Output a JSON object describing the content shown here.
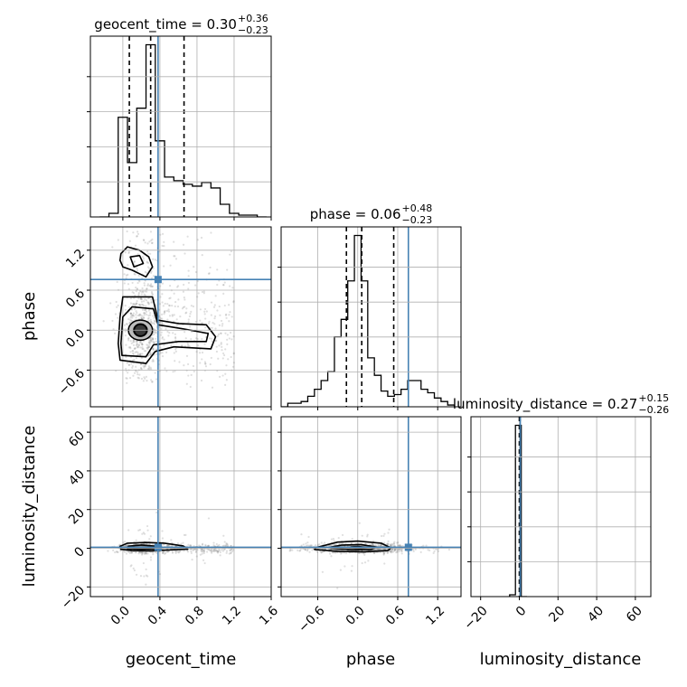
{
  "chart_data": {
    "type": "corner",
    "parameters": [
      "geocent_time",
      "phase",
      "luminosity_distance"
    ],
    "truths": {
      "geocent_time": 0.38,
      "phase": 0.76,
      "luminosity_distance": 0.5
    },
    "colors": {
      "truth": "#4682b4",
      "hist": "#000000",
      "grid": "#b0b0b0",
      "points": "#7f7f7f"
    },
    "grid": true,
    "titles": [
      {
        "parameter": "geocent_time",
        "median": "0.30",
        "plus": "+0.36",
        "minus": "−0.23",
        "prefix": "geocent_time = "
      },
      {
        "parameter": "phase",
        "median": "0.06",
        "plus": "+0.48",
        "minus": "−0.23",
        "prefix": "phase = "
      },
      {
        "parameter": "luminosity_distance",
        "median": "0.27",
        "plus": "+0.15",
        "minus": "−0.26",
        "prefix": "luminosity_distance = "
      }
    ],
    "axes": {
      "geocent_time": {
        "range": [
          -0.35,
          1.6
        ],
        "ticks": [
          0.0,
          0.4,
          0.8,
          1.2,
          1.6
        ],
        "tick_labels": [
          "0.0",
          "0.4",
          "0.8",
          "1.2",
          "1.6"
        ]
      },
      "phase": {
        "range": [
          -1.15,
          1.55
        ],
        "ticks": [
          -0.6,
          0.0,
          0.6,
          1.2
        ],
        "tick_labels": [
          "−0.6",
          "0.0",
          "0.6",
          "1.2"
        ]
      },
      "luminosity_distance": {
        "range": [
          -25,
          68
        ],
        "ticks": [
          -20,
          0,
          20,
          40,
          60
        ],
        "tick_labels": [
          "−20",
          "0",
          "20",
          "40",
          "60"
        ]
      }
    },
    "histograms": {
      "geocent_time": {
        "edges": [
          -0.25,
          -0.15,
          -0.05,
          0.05,
          0.15,
          0.25,
          0.35,
          0.45,
          0.55,
          0.65,
          0.75,
          0.85,
          0.95,
          1.05,
          1.15,
          1.25,
          1.35,
          1.45,
          1.55
        ],
        "counts": [
          0,
          2,
          55,
          30,
          60,
          95,
          42,
          22,
          20,
          18,
          17,
          19,
          16,
          7,
          2,
          1,
          1,
          0
        ],
        "quantiles": [
          0.07,
          0.3,
          0.66
        ]
      },
      "phase": {
        "edges": [
          -1.15,
          -1.05,
          -0.95,
          -0.85,
          -0.75,
          -0.65,
          -0.55,
          -0.45,
          -0.35,
          -0.25,
          -0.15,
          -0.05,
          0.05,
          0.15,
          0.25,
          0.35,
          0.45,
          0.55,
          0.65,
          0.75,
          0.85,
          0.95,
          1.05,
          1.15,
          1.25,
          1.35,
          1.45
        ],
        "counts": [
          0,
          2,
          2,
          3,
          6,
          10,
          15,
          20,
          40,
          50,
          72,
          98,
          72,
          28,
          18,
          9,
          6,
          7,
          10,
          15,
          15,
          10,
          8,
          5,
          3,
          1
        ],
        "quantiles": [
          -0.17,
          0.06,
          0.54
        ]
      },
      "luminosity_distance": {
        "edges": [
          -5,
          -2,
          1,
          4
        ],
        "counts": [
          1,
          95,
          0
        ],
        "quantiles": [
          0.01,
          0.27,
          0.42
        ]
      }
    },
    "contours": {
      "phase_vs_geocent_time": {
        "filled_core": {
          "center": [
            0.19,
            0.0
          ],
          "rx": 0.07,
          "ry": 0.09
        },
        "inner": {
          "center": [
            0.19,
            0.0
          ],
          "rx": 0.13,
          "ry": 0.15
        },
        "levels": [
          {
            "points": [
              [
                -0.03,
                -0.45
              ],
              [
                0.25,
                -0.5
              ],
              [
                0.35,
                -0.32
              ],
              [
                0.55,
                -0.25
              ],
              [
                0.95,
                -0.28
              ],
              [
                1.0,
                -0.1
              ],
              [
                0.9,
                0.08
              ],
              [
                0.6,
                0.1
              ],
              [
                0.38,
                0.15
              ],
              [
                0.32,
                0.5
              ],
              [
                0.25,
                0.5
              ],
              [
                0.0,
                0.5
              ],
              [
                -0.03,
                0.2
              ],
              [
                -0.05,
                -0.2
              ]
            ]
          },
          {
            "points": [
              [
                -0.01,
                -0.38
              ],
              [
                0.25,
                -0.4
              ],
              [
                0.33,
                -0.22
              ],
              [
                0.6,
                -0.17
              ],
              [
                0.9,
                -0.17
              ],
              [
                0.92,
                -0.05
              ],
              [
                0.65,
                0.02
              ],
              [
                0.38,
                0.08
              ],
              [
                0.33,
                0.32
              ],
              [
                0.1,
                0.35
              ],
              [
                0.0,
                0.2
              ],
              [
                -0.02,
                -0.2
              ]
            ]
          },
          {
            "points": [
              [
                -0.02,
                1.15
              ],
              [
                0.05,
                1.25
              ],
              [
                0.18,
                1.2
              ],
              [
                0.28,
                1.1
              ],
              [
                0.32,
                0.95
              ],
              [
                0.25,
                0.8
              ],
              [
                0.1,
                0.9
              ],
              [
                0.0,
                0.95
              ],
              [
                -0.03,
                1.05
              ]
            ]
          },
          {
            "points": [
              [
                0.08,
                1.1
              ],
              [
                0.18,
                1.12
              ],
              [
                0.22,
                1.0
              ],
              [
                0.12,
                0.95
              ]
            ]
          }
        ]
      },
      "luminosity_distance_vs_geocent_time": {
        "levels": [
          {
            "points": [
              [
                -0.02,
                -0.5
              ],
              [
                0.1,
                -1.2
              ],
              [
                0.3,
                -1.3
              ],
              [
                0.55,
                -0.8
              ],
              [
                0.7,
                -0.4
              ],
              [
                0.65,
                1.2
              ],
              [
                0.45,
                2.6
              ],
              [
                0.25,
                3.0
              ],
              [
                0.05,
                2.6
              ],
              [
                -0.03,
                1.0
              ]
            ]
          },
          {
            "points": [
              [
                0.05,
                -0.2
              ],
              [
                0.2,
                -0.4
              ],
              [
                0.35,
                -0.2
              ],
              [
                0.38,
                1.0
              ],
              [
                0.2,
                1.7
              ],
              [
                0.06,
                1.1
              ]
            ]
          }
        ]
      },
      "luminosity_distance_vs_phase": {
        "levels": [
          {
            "points": [
              [
                -0.65,
                -0.6
              ],
              [
                -0.3,
                -1.6
              ],
              [
                0.1,
                -1.8
              ],
              [
                0.45,
                -1.2
              ],
              [
                0.5,
                0.2
              ],
              [
                0.35,
                2.6
              ],
              [
                0.0,
                3.7
              ],
              [
                -0.3,
                3.2
              ],
              [
                -0.62,
                0.4
              ]
            ]
          },
          {
            "points": [
              [
                -0.4,
                0.0
              ],
              [
                -0.1,
                -0.7
              ],
              [
                0.2,
                -0.6
              ],
              [
                0.28,
                0.6
              ],
              [
                0.05,
                1.9
              ],
              [
                -0.25,
                1.6
              ],
              [
                -0.4,
                0.6
              ]
            ]
          },
          {
            "points": [
              [
                -0.12,
                0.3
              ],
              [
                0.05,
                -0.1
              ],
              [
                0.13,
                0.4
              ],
              [
                0.0,
                0.9
              ],
              [
                -0.1,
                0.7
              ]
            ]
          }
        ]
      }
    }
  }
}
